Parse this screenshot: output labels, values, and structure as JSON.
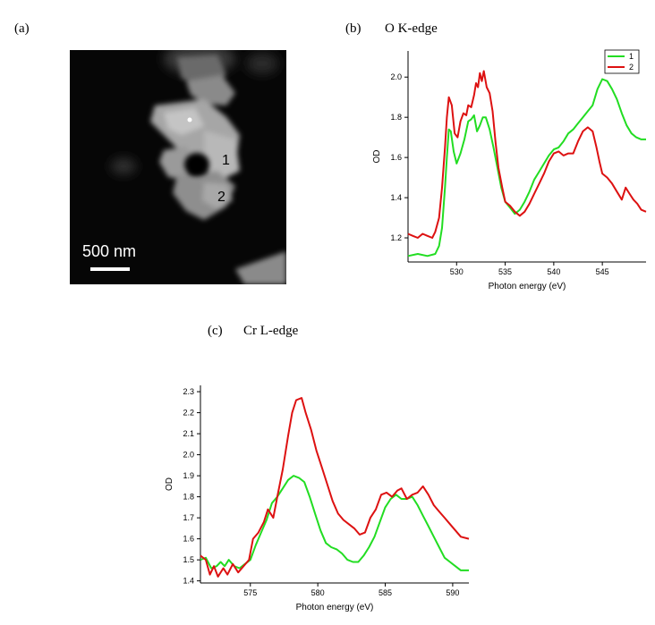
{
  "panels": {
    "a": {
      "label": "(a)",
      "annotations": [
        "1",
        "2"
      ],
      "scalebar_label": "500 nm"
    },
    "b": {
      "label": "(b)",
      "title": "O K-edge"
    },
    "c": {
      "label": "(c)",
      "title": "Cr L-edge"
    }
  },
  "chart_data": [
    {
      "type": "line",
      "panel": "b",
      "title": "O K-edge",
      "xlabel": "Photon energy (eV)",
      "ylabel": "OD",
      "xlim": [
        525,
        549.5
      ],
      "ylim": [
        1.08,
        2.13
      ],
      "xticks": [
        530,
        535,
        540,
        545
      ],
      "yticks": [
        1.2,
        1.4,
        1.6,
        1.8,
        2.0
      ],
      "ytick_labels": [
        "1.2",
        "1.4",
        "1.6",
        "1.8",
        "2.0"
      ],
      "legend": "top-right",
      "series": [
        {
          "name": "1",
          "color": "#22dd22",
          "points": [
            [
              525,
              1.11
            ],
            [
              526,
              1.12
            ],
            [
              527,
              1.11
            ],
            [
              527.8,
              1.12
            ],
            [
              528.2,
              1.16
            ],
            [
              528.5,
              1.25
            ],
            [
              528.8,
              1.45
            ],
            [
              529,
              1.6
            ],
            [
              529.2,
              1.74
            ],
            [
              529.4,
              1.73
            ],
            [
              529.7,
              1.63
            ],
            [
              530,
              1.57
            ],
            [
              530.4,
              1.62
            ],
            [
              530.8,
              1.69
            ],
            [
              531.2,
              1.78
            ],
            [
              531.5,
              1.79
            ],
            [
              531.8,
              1.81
            ],
            [
              532.1,
              1.73
            ],
            [
              532.4,
              1.76
            ],
            [
              532.7,
              1.8
            ],
            [
              533.0,
              1.8
            ],
            [
              533.4,
              1.74
            ],
            [
              533.8,
              1.65
            ],
            [
              534.2,
              1.55
            ],
            [
              534.6,
              1.45
            ],
            [
              535,
              1.38
            ],
            [
              535.5,
              1.35
            ],
            [
              536,
              1.32
            ],
            [
              536.5,
              1.34
            ],
            [
              537,
              1.38
            ],
            [
              537.5,
              1.43
            ],
            [
              538,
              1.49
            ],
            [
              538.5,
              1.53
            ],
            [
              539,
              1.57
            ],
            [
              539.5,
              1.61
            ],
            [
              540,
              1.64
            ],
            [
              540.5,
              1.65
            ],
            [
              541,
              1.68
            ],
            [
              541.5,
              1.72
            ],
            [
              542,
              1.74
            ],
            [
              542.5,
              1.77
            ],
            [
              543,
              1.8
            ],
            [
              543.5,
              1.83
            ],
            [
              544,
              1.86
            ],
            [
              544.5,
              1.94
            ],
            [
              545,
              1.99
            ],
            [
              545.5,
              1.98
            ],
            [
              546,
              1.94
            ],
            [
              546.5,
              1.89
            ],
            [
              547,
              1.82
            ],
            [
              547.5,
              1.76
            ],
            [
              548,
              1.72
            ],
            [
              548.5,
              1.7
            ],
            [
              549,
              1.69
            ],
            [
              549.5,
              1.69
            ]
          ]
        },
        {
          "name": "2",
          "color": "#dd1111",
          "points": [
            [
              525,
              1.22
            ],
            [
              525.5,
              1.21
            ],
            [
              526,
              1.2
            ],
            [
              526.5,
              1.22
            ],
            [
              527,
              1.21
            ],
            [
              527.5,
              1.2
            ],
            [
              527.8,
              1.23
            ],
            [
              528.2,
              1.3
            ],
            [
              528.5,
              1.45
            ],
            [
              528.8,
              1.65
            ],
            [
              529,
              1.8
            ],
            [
              529.2,
              1.9
            ],
            [
              529.5,
              1.86
            ],
            [
              529.8,
              1.72
            ],
            [
              530.1,
              1.7
            ],
            [
              530.4,
              1.78
            ],
            [
              530.7,
              1.82
            ],
            [
              531,
              1.81
            ],
            [
              531.2,
              1.86
            ],
            [
              531.5,
              1.85
            ],
            [
              531.8,
              1.91
            ],
            [
              532,
              1.97
            ],
            [
              532.2,
              1.95
            ],
            [
              532.4,
              2.02
            ],
            [
              532.6,
              1.98
            ],
            [
              532.8,
              2.03
            ],
            [
              533.1,
              1.95
            ],
            [
              533.4,
              1.92
            ],
            [
              533.7,
              1.83
            ],
            [
              534,
              1.68
            ],
            [
              534.3,
              1.55
            ],
            [
              534.7,
              1.45
            ],
            [
              535,
              1.38
            ],
            [
              535.5,
              1.36
            ],
            [
              536,
              1.33
            ],
            [
              536.5,
              1.31
            ],
            [
              537,
              1.33
            ],
            [
              537.5,
              1.37
            ],
            [
              538,
              1.42
            ],
            [
              538.5,
              1.47
            ],
            [
              539,
              1.52
            ],
            [
              539.5,
              1.58
            ],
            [
              540,
              1.62
            ],
            [
              540.5,
              1.63
            ],
            [
              541,
              1.61
            ],
            [
              541.5,
              1.62
            ],
            [
              542,
              1.62
            ],
            [
              542.5,
              1.68
            ],
            [
              543,
              1.73
            ],
            [
              543.5,
              1.75
            ],
            [
              544,
              1.73
            ],
            [
              544.4,
              1.65
            ],
            [
              544.7,
              1.58
            ],
            [
              545,
              1.52
            ],
            [
              545.5,
              1.5
            ],
            [
              546,
              1.47
            ],
            [
              546.5,
              1.43
            ],
            [
              547,
              1.39
            ],
            [
              547.4,
              1.45
            ],
            [
              547.8,
              1.42
            ],
            [
              548.2,
              1.39
            ],
            [
              548.6,
              1.37
            ],
            [
              549,
              1.34
            ],
            [
              549.5,
              1.33
            ]
          ]
        }
      ]
    },
    {
      "type": "line",
      "panel": "c",
      "title": "Cr L-edge",
      "xlabel": "Photon energy (eV)",
      "ylabel": "OD",
      "xlim": [
        571.3,
        591.2
      ],
      "ylim": [
        1.39,
        2.33
      ],
      "xticks": [
        575,
        580,
        585,
        590
      ],
      "yticks": [
        1.4,
        1.5,
        1.6,
        1.7,
        1.8,
        1.9,
        2.0,
        2.1,
        2.2,
        2.3
      ],
      "ytick_labels": [
        "1.4",
        "1.5",
        "1.6",
        "1.7",
        "1.8",
        "1.9",
        "2.0",
        "2.1",
        "2.2",
        "2.3"
      ],
      "series": [
        {
          "name": "1",
          "color": "#22dd22",
          "points": [
            [
              571.3,
              1.5
            ],
            [
              571.7,
              1.51
            ],
            [
              572.1,
              1.46
            ],
            [
              572.5,
              1.47
            ],
            [
              572.8,
              1.49
            ],
            [
              573.1,
              1.47
            ],
            [
              573.4,
              1.5
            ],
            [
              573.8,
              1.47
            ],
            [
              574.2,
              1.46
            ],
            [
              574.6,
              1.48
            ],
            [
              575,
              1.5
            ],
            [
              575.4,
              1.57
            ],
            [
              575.8,
              1.63
            ],
            [
              576.2,
              1.69
            ],
            [
              576.6,
              1.77
            ],
            [
              577,
              1.8
            ],
            [
              577.4,
              1.84
            ],
            [
              577.8,
              1.88
            ],
            [
              578.2,
              1.9
            ],
            [
              578.6,
              1.89
            ],
            [
              579,
              1.87
            ],
            [
              579.4,
              1.8
            ],
            [
              579.8,
              1.72
            ],
            [
              580.2,
              1.64
            ],
            [
              580.6,
              1.58
            ],
            [
              581,
              1.56
            ],
            [
              581.4,
              1.55
            ],
            [
              581.8,
              1.53
            ],
            [
              582.2,
              1.5
            ],
            [
              582.6,
              1.49
            ],
            [
              583,
              1.49
            ],
            [
              583.4,
              1.52
            ],
            [
              583.8,
              1.56
            ],
            [
              584.2,
              1.61
            ],
            [
              584.6,
              1.68
            ],
            [
              585,
              1.75
            ],
            [
              585.4,
              1.79
            ],
            [
              585.8,
              1.81
            ],
            [
              586.2,
              1.79
            ],
            [
              586.6,
              1.79
            ],
            [
              587,
              1.8
            ],
            [
              587.4,
              1.76
            ],
            [
              587.8,
              1.71
            ],
            [
              588.2,
              1.66
            ],
            [
              588.6,
              1.61
            ],
            [
              589,
              1.56
            ],
            [
              589.4,
              1.51
            ],
            [
              589.8,
              1.49
            ],
            [
              590.2,
              1.47
            ],
            [
              590.6,
              1.45
            ],
            [
              591.2,
              1.45
            ]
          ]
        },
        {
          "name": "2",
          "color": "#dd1111",
          "points": [
            [
              571.3,
              1.52
            ],
            [
              571.7,
              1.5
            ],
            [
              572,
              1.43
            ],
            [
              572.3,
              1.47
            ],
            [
              572.6,
              1.42
            ],
            [
              573,
              1.46
            ],
            [
              573.3,
              1.43
            ],
            [
              573.7,
              1.48
            ],
            [
              574.1,
              1.44
            ],
            [
              574.5,
              1.47
            ],
            [
              574.9,
              1.5
            ],
            [
              575.2,
              1.6
            ],
            [
              575.6,
              1.63
            ],
            [
              576,
              1.68
            ],
            [
              576.3,
              1.74
            ],
            [
              576.7,
              1.7
            ],
            [
              577,
              1.8
            ],
            [
              577.4,
              1.93
            ],
            [
              577.8,
              2.09
            ],
            [
              578.1,
              2.2
            ],
            [
              578.4,
              2.26
            ],
            [
              578.8,
              2.27
            ],
            [
              579.1,
              2.2
            ],
            [
              579.5,
              2.12
            ],
            [
              579.9,
              2.02
            ],
            [
              580.3,
              1.94
            ],
            [
              580.7,
              1.86
            ],
            [
              581.1,
              1.78
            ],
            [
              581.5,
              1.72
            ],
            [
              581.9,
              1.69
            ],
            [
              582.3,
              1.67
            ],
            [
              582.7,
              1.65
            ],
            [
              583.1,
              1.62
            ],
            [
              583.5,
              1.63
            ],
            [
              583.9,
              1.7
            ],
            [
              584.3,
              1.74
            ],
            [
              584.7,
              1.81
            ],
            [
              585.1,
              1.82
            ],
            [
              585.5,
              1.8
            ],
            [
              585.9,
              1.83
            ],
            [
              586.2,
              1.84
            ],
            [
              586.6,
              1.79
            ],
            [
              587,
              1.81
            ],
            [
              587.4,
              1.82
            ],
            [
              587.8,
              1.85
            ],
            [
              588.2,
              1.81
            ],
            [
              588.6,
              1.76
            ],
            [
              589,
              1.73
            ],
            [
              589.4,
              1.7
            ],
            [
              589.8,
              1.67
            ],
            [
              590.2,
              1.64
            ],
            [
              590.6,
              1.61
            ],
            [
              591.2,
              1.6
            ]
          ]
        }
      ]
    }
  ]
}
